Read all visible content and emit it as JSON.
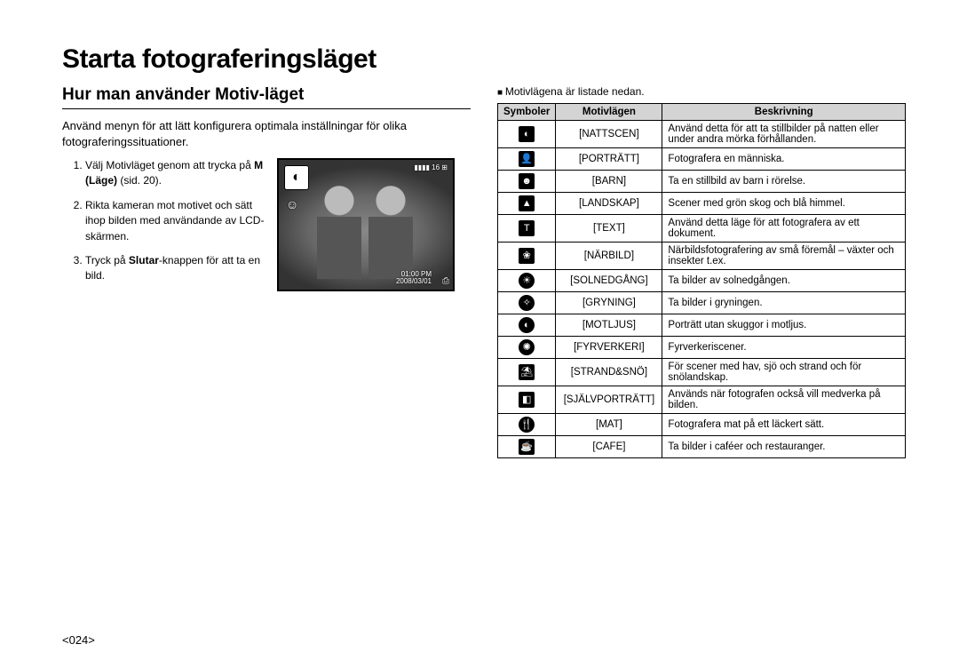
{
  "title": "Starta fotograferingsläget",
  "section": "Hur man använder Motiv-läget",
  "intro": "Använd menyn för att lätt konfigurera optimala inställningar för olika fotograferingssituationer.",
  "steps": [
    {
      "pre": "Välj Motivläget genom att trycka på ",
      "bold": "M (Läge)",
      "post": " (sid. 20)."
    },
    {
      "pre": "Rikta kameran mot motivet och sätt ihop bilden med användande av LCD-skärmen.",
      "bold": "",
      "post": ""
    },
    {
      "pre": "Tryck på ",
      "bold": "Slutar",
      "post": "-knappen för att ta en bild."
    }
  ],
  "lcd": {
    "mode_glyph": "◐",
    "hud": "▮▮▮▮ 16  ⊞",
    "face": "☺",
    "time_1": "01:00 PM",
    "time_2": "2008/03/01",
    "corner": "⎙"
  },
  "right_intro": "Motivlägena är listade nedan.",
  "headers": {
    "sym": "Symboler",
    "mode": "Motivlägen",
    "desc": "Beskrivning"
  },
  "rows": [
    {
      "glyph": "◐",
      "shape": "box",
      "mode": "[NATTSCEN]",
      "desc": "Använd detta för att ta stillbilder på natten eller under andra mörka förhållanden."
    },
    {
      "glyph": "👤",
      "shape": "box",
      "mode": "[PORTRÄTT]",
      "desc": "Fotografera en människa."
    },
    {
      "glyph": "☻",
      "shape": "box",
      "mode": "[BARN]",
      "desc": "Ta en stillbild av barn i rörelse."
    },
    {
      "glyph": "▲",
      "shape": "box",
      "mode": "[LANDSKAP]",
      "desc": "Scener med grön skog och blå himmel."
    },
    {
      "glyph": "T",
      "shape": "box",
      "mode": "[TEXT]",
      "desc": "Använd detta läge för att fotografera av ett dokument."
    },
    {
      "glyph": "❀",
      "shape": "box",
      "mode": "[NÄRBILD]",
      "desc": "Närbildsfotografering av små föremål – växter och insekter t.ex."
    },
    {
      "glyph": "☀",
      "shape": "round",
      "mode": "[SOLNEDGÅNG]",
      "desc": "Ta bilder av solnedgången."
    },
    {
      "glyph": "✧",
      "shape": "round",
      "mode": "[GRYNING]",
      "desc": "Ta bilder i gryningen."
    },
    {
      "glyph": "◐",
      "shape": "round",
      "mode": "[MOTLJUS]",
      "desc": "Porträtt utan skuggor i motljus."
    },
    {
      "glyph": "✺",
      "shape": "round",
      "mode": "[FYRVERKERI]",
      "desc": "Fyrverkeriscener."
    },
    {
      "glyph": "⛱",
      "shape": "box",
      "mode": "[STRAND&SNÖ]",
      "desc": "För scener med hav, sjö och strand och för snölandskap."
    },
    {
      "glyph": "◧",
      "shape": "box",
      "mode": "[SJÄLVPORTRÄTT]",
      "desc": "Används när fotografen också vill medverka på bilden."
    },
    {
      "glyph": "🍴",
      "shape": "round",
      "mode": "[MAT]",
      "desc": "Fotografera mat på ett läckert sätt."
    },
    {
      "glyph": "☕",
      "shape": "box",
      "mode": "[CAFE]",
      "desc": "Ta bilder i caféer och restauranger."
    }
  ],
  "page": "<024>"
}
